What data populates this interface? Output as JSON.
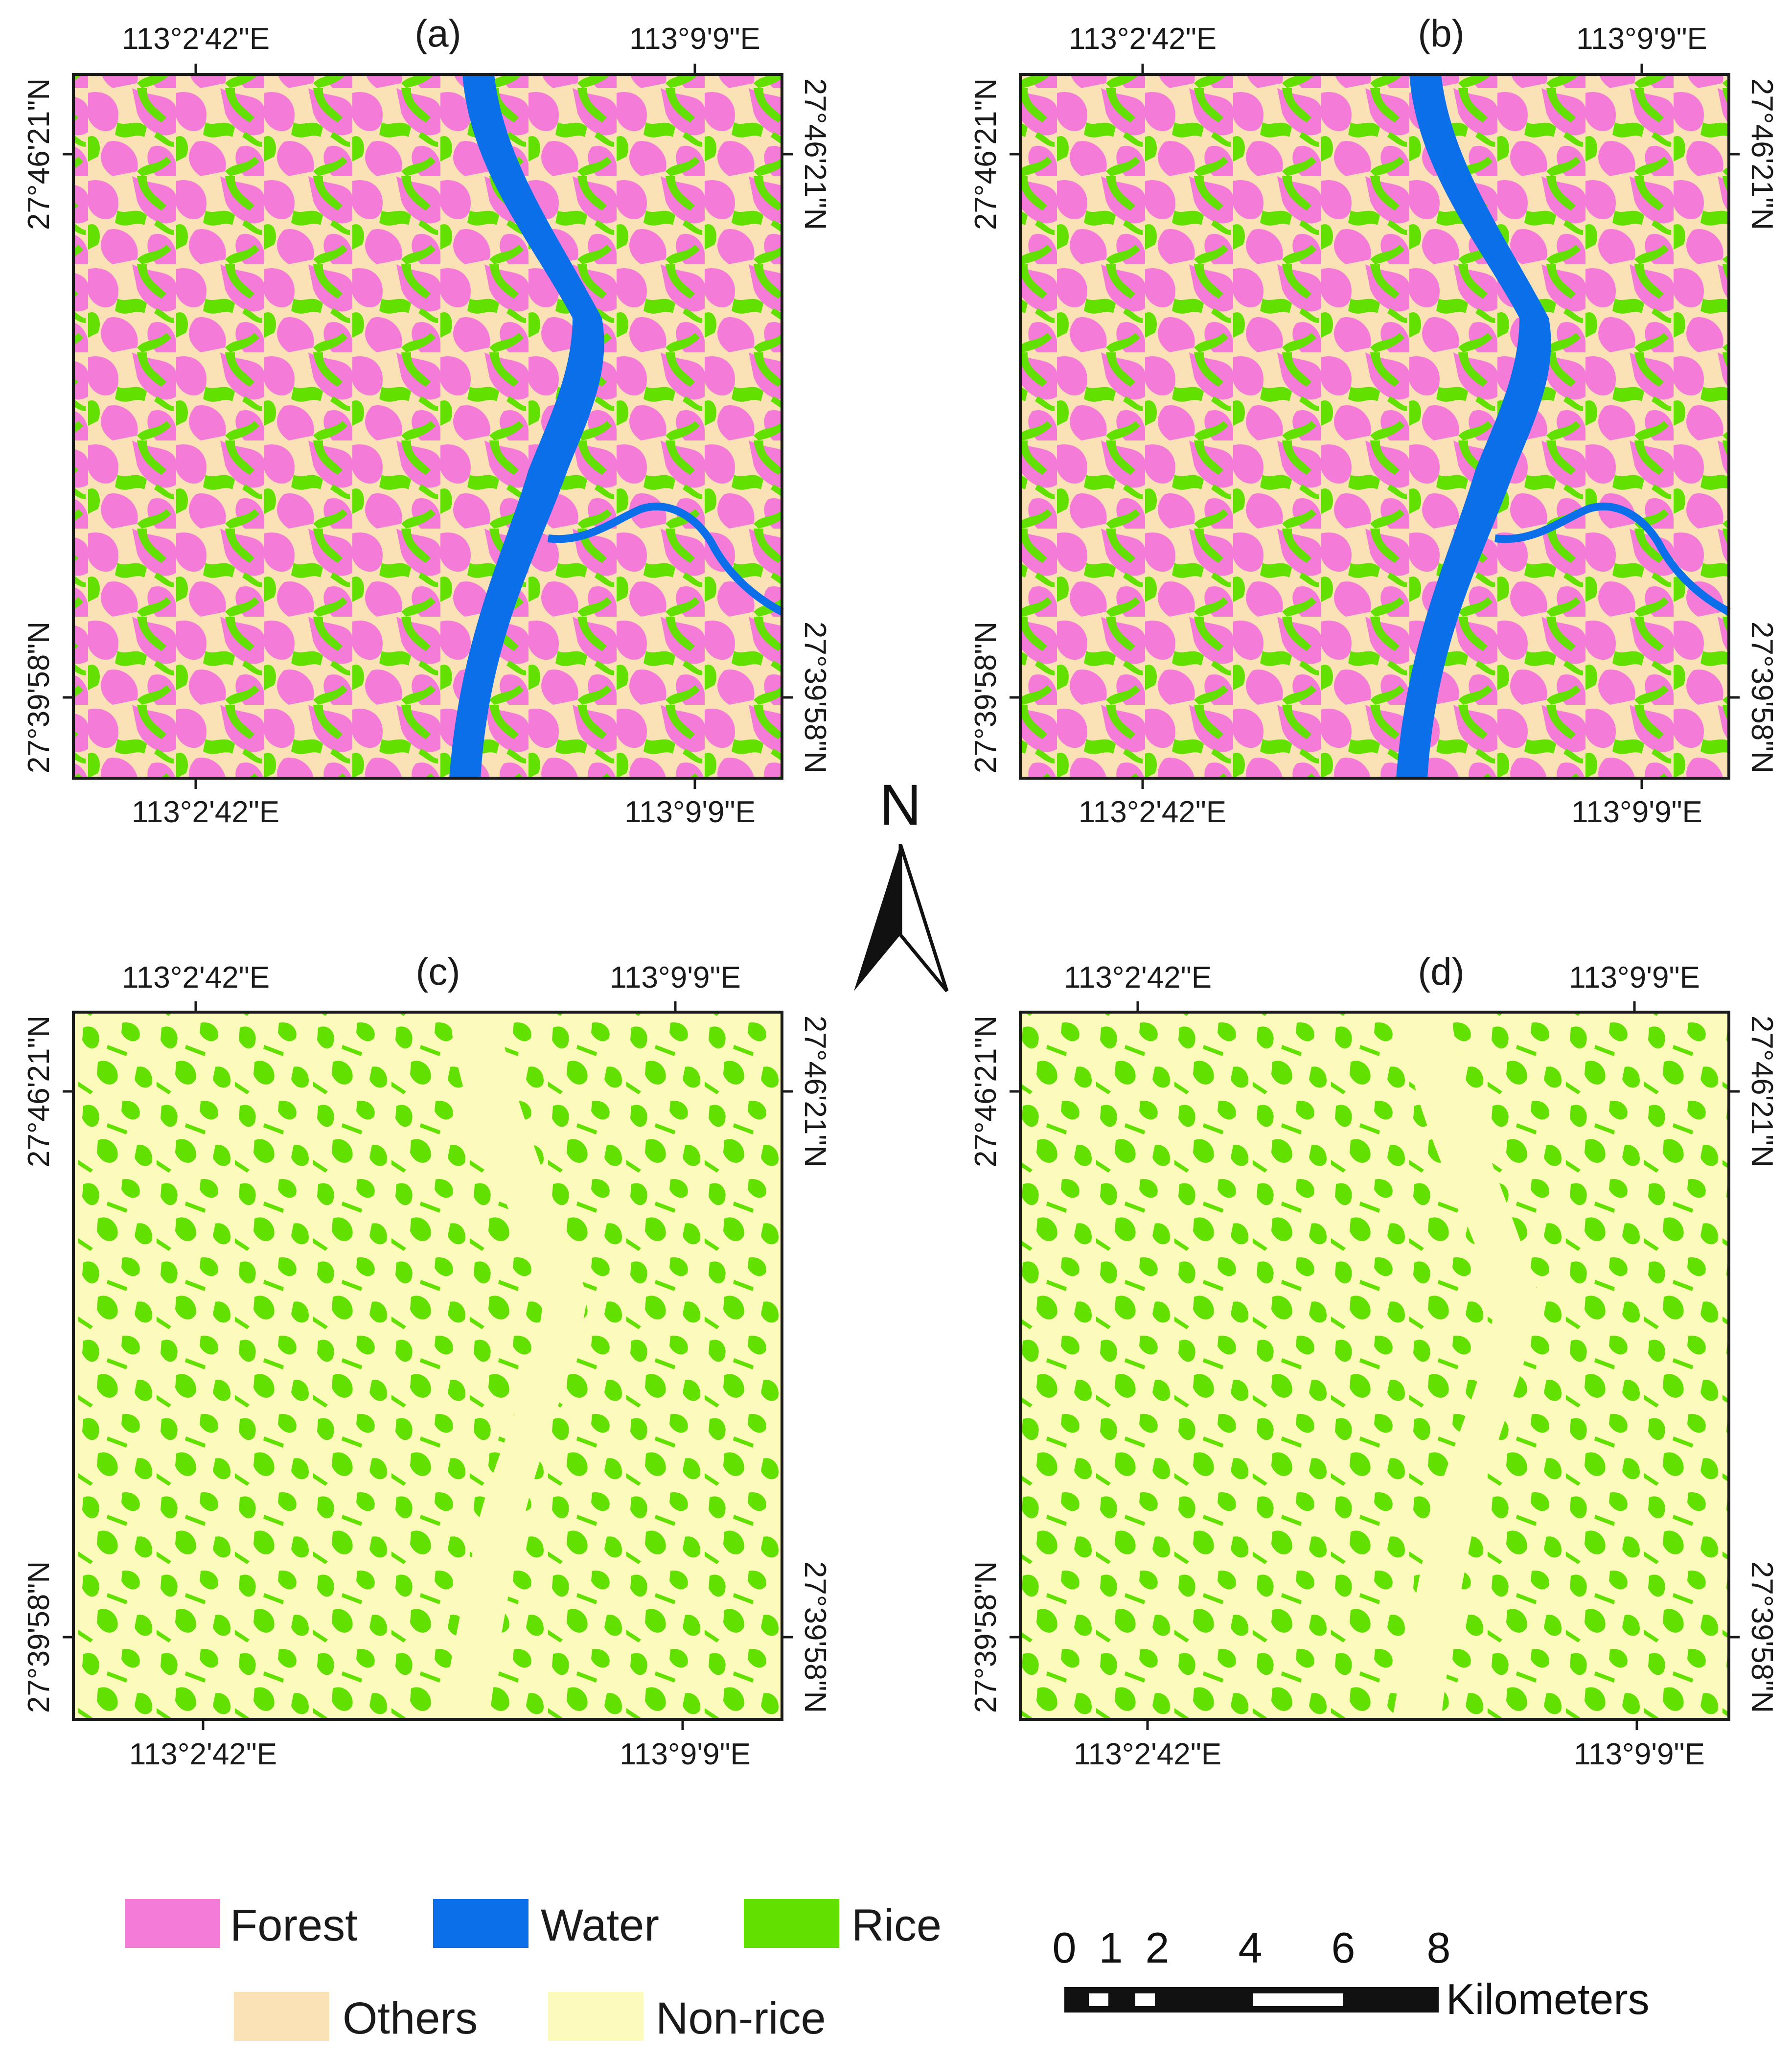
{
  "panels": [
    {
      "id": "a",
      "label": "(a)",
      "type": "classification",
      "lon_top_left": "113°2'42\"E",
      "lon_top_right": "113°9'9\"E",
      "lon_bottom_left": "113°2'42\"E",
      "lon_bottom_right": "113°9'9\"E",
      "lat_top": "27°46'21\"N",
      "lat_bottom": "27°39'58\"N"
    },
    {
      "id": "b",
      "label": "(b)",
      "type": "classification",
      "lon_top_left": "113°2'42\"E",
      "lon_top_right": "113°9'9\"E",
      "lon_bottom_left": "113°2'42\"E",
      "lon_bottom_right": "113°9'9\"E",
      "lat_top": "27°46'21\"N",
      "lat_bottom": "27°39'58\"N"
    },
    {
      "id": "c",
      "label": "(c)",
      "type": "binary",
      "lon_top_left": "113°2'42\"E",
      "lon_top_right": "113°9'9\"E",
      "lon_bottom_left": "113°2'42\"E",
      "lon_bottom_right": "113°9'9\"E",
      "lat_top": "27°46'21\"N",
      "lat_bottom": "27°39'58\"N"
    },
    {
      "id": "d",
      "label": "(d)",
      "type": "binary",
      "lon_top_left": "113°2'42\"E",
      "lon_top_right": "113°9'9\"E",
      "lon_bottom_left": "113°2'42\"E",
      "lon_bottom_right": "113°9'9\"E",
      "lat_top": "27°46'21\"N",
      "lat_bottom": "27°39'58\"N"
    }
  ],
  "legend": [
    {
      "label": "Forest",
      "color": "#f47bd8"
    },
    {
      "label": "Water",
      "color": "#0a6fe8"
    },
    {
      "label": "Rice",
      "color": "#62e000"
    },
    {
      "label": "Others",
      "color": "#fbe2b6"
    },
    {
      "label": "Non-rice",
      "color": "#fdfbbb"
    }
  ],
  "north_arrow": {
    "label": "N"
  },
  "scale_bar": {
    "ticks": [
      "0",
      "1",
      "2",
      "4",
      "6",
      "8"
    ],
    "unit": "Kilometers"
  }
}
